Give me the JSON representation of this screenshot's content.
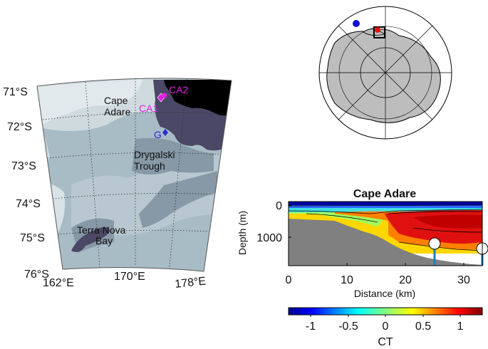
{
  "map": {
    "lat_labels": [
      "71°S",
      "72°S",
      "73°S",
      "74°S",
      "75°S",
      "76°S"
    ],
    "lon_labels": [
      "162°E",
      "170°E",
      "178°E"
    ],
    "places": {
      "cape_adare_1": "Cape",
      "cape_adare_2": "Adare",
      "drygalski_1": "Drygalski",
      "drygalski_2": "Trough",
      "terra_nova_1": "Terra Nova",
      "terra_nova_2": "Bay"
    },
    "sites": {
      "ca1": "CA1",
      "ca2": "CA2",
      "g": "G"
    },
    "colors": {
      "land": "#cfdadf",
      "shelf": "#a8bcc6",
      "trough": "#8799a6",
      "deep": "#4b4766",
      "ocean_deep": "#000000",
      "ca_marker": "#e020e0",
      "g_marker": "#2a2ad0"
    }
  },
  "inset": {
    "colors": {
      "land": "#bdbdbd",
      "marker_blue": "#1010d0",
      "marker_red": "#e01010"
    }
  },
  "section": {
    "title": "Cape Adare",
    "xlabel": "Distance (km)",
    "ylabel": "Depth (m)",
    "x_ticks": [
      "0",
      "10",
      "20",
      "30"
    ],
    "y_ticks": [
      "0",
      "1000"
    ],
    "x_range_km": [
      0,
      33
    ],
    "depth_range_m": [
      0,
      1900
    ]
  },
  "colorbar": {
    "label": "CT",
    "ticks": [
      "-1",
      "-0.5",
      "0",
      "0.5",
      "1"
    ],
    "range": [
      -1.4,
      1.2
    ]
  }
}
